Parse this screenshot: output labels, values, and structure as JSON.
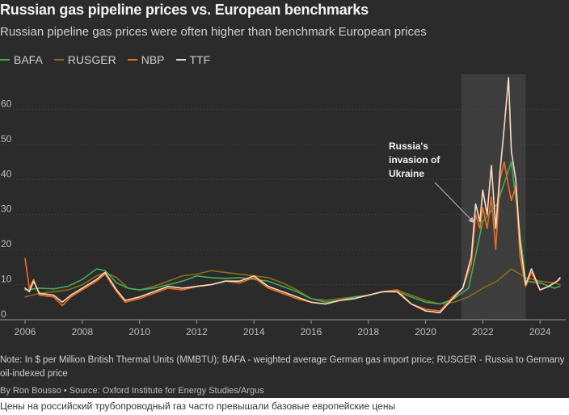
{
  "title": "Russian gas pipeline prices vs. European benchmarks",
  "subtitle": "Russian pipeline gas prices were often higher than benchmark European prices",
  "note": "Note: In $ per Million British Thermal Units (MMBTU); BAFA - weighted average German gas import price; RUSGER - Russia to Germany oil-indexed price",
  "credit": "By Ron Bousso • Source: Oxford Institute for Energy Studies/Argus",
  "caption": "Цены на российский трубопроводный газ часто превышали базовые европейские цены",
  "colors": {
    "background": "#2b2b2b",
    "BAFA": "#3fae5a",
    "RUSGER": "#8a6d1a",
    "NBP": "#f26b1d",
    "TTF": "#fbd9bf",
    "shade": "#3d3d3d"
  },
  "chart_data": {
    "type": "line",
    "xlim": [
      2006.0,
      2024.9
    ],
    "ylim": [
      0,
      70
    ],
    "yticks": [
      0,
      10,
      20,
      30,
      40,
      50,
      60
    ],
    "xticks": [
      2006,
      2008,
      2010,
      2012,
      2014,
      2016,
      2018,
      2020,
      2022,
      2024
    ],
    "ytick_labels": [
      "0",
      "10",
      "20",
      "30",
      "40",
      "50",
      "60"
    ],
    "xtick_labels": [
      "2006",
      "2008",
      "2010",
      "2012",
      "2014",
      "2016",
      "2018",
      "2020",
      "2022",
      "2024"
    ],
    "shaded_range": [
      2021.25,
      2023.5
    ],
    "annotation": {
      "lines": [
        "Russia's",
        "invasion of",
        "Ukraine"
      ],
      "x": 2022.0,
      "y": 27.5
    },
    "series": [
      {
        "name": "BAFA",
        "x": [
          2006.0,
          2006.5,
          2007.0,
          2007.5,
          2008.0,
          2008.5,
          2008.8,
          2009.2,
          2009.6,
          2010.0,
          2010.5,
          2011.0,
          2011.5,
          2012.0,
          2012.5,
          2013.0,
          2013.5,
          2014.0,
          2014.5,
          2015.0,
          2015.5,
          2016.0,
          2016.5,
          2017.0,
          2017.5,
          2018.0,
          2018.5,
          2019.0,
          2019.5,
          2020.0,
          2020.5,
          2021.0,
          2021.5,
          2022.0,
          2022.5,
          2023.0,
          2023.5,
          2024.0,
          2024.5,
          2024.7
        ],
        "values": [
          8.5,
          9.0,
          8.8,
          9.5,
          11.5,
          14.5,
          14.0,
          10.5,
          9.0,
          8.5,
          9.0,
          10.0,
          11.0,
          12.5,
          12.0,
          11.8,
          12.0,
          11.5,
          11.0,
          9.5,
          8.0,
          6.0,
          5.0,
          5.5,
          6.5,
          7.0,
          8.0,
          8.0,
          6.5,
          5.0,
          4.5,
          6.0,
          9.0,
          28.0,
          33.0,
          45.0,
          11.0,
          10.5,
          9.0,
          9.5
        ]
      },
      {
        "name": "RUSGER",
        "x": [
          2006.0,
          2006.5,
          2007.0,
          2007.5,
          2008.0,
          2008.5,
          2008.8,
          2009.2,
          2009.6,
          2010.0,
          2010.5,
          2011.0,
          2011.5,
          2012.0,
          2012.5,
          2013.0,
          2013.5,
          2014.0,
          2014.5,
          2015.0,
          2015.5,
          2016.0,
          2016.5,
          2017.0,
          2017.5,
          2018.0,
          2018.5,
          2019.0,
          2019.5,
          2020.0,
          2020.5,
          2021.0,
          2021.5,
          2022.0,
          2022.5,
          2023.0,
          2023.5,
          2024.0,
          2024.5,
          2024.7
        ],
        "values": [
          6.5,
          7.5,
          8.0,
          8.5,
          10.0,
          12.5,
          13.5,
          12.0,
          9.0,
          8.5,
          9.5,
          11.0,
          12.5,
          13.0,
          14.0,
          13.5,
          13.0,
          12.5,
          12.0,
          10.5,
          8.5,
          6.0,
          5.5,
          6.0,
          6.5,
          7.0,
          8.0,
          8.5,
          7.0,
          5.5,
          4.5,
          5.0,
          6.5,
          9.0,
          11.0,
          14.5,
          12.0,
          11.0,
          10.5,
          10.0
        ]
      },
      {
        "name": "NBP",
        "x": [
          2006.0,
          2006.15,
          2006.3,
          2006.5,
          2007.0,
          2007.3,
          2007.6,
          2008.0,
          2008.5,
          2008.8,
          2009.2,
          2009.5,
          2010.0,
          2010.5,
          2011.0,
          2011.5,
          2012.0,
          2012.5,
          2013.0,
          2013.5,
          2014.0,
          2014.5,
          2015.0,
          2015.5,
          2016.0,
          2016.5,
          2017.0,
          2017.5,
          2018.0,
          2018.5,
          2019.0,
          2019.5,
          2020.0,
          2020.5,
          2021.0,
          2021.3,
          2021.6,
          2021.75,
          2021.9,
          2022.0,
          2022.15,
          2022.3,
          2022.45,
          2022.6,
          2022.75,
          2022.9,
          2023.0,
          2023.15,
          2023.3,
          2023.5,
          2023.7,
          2024.0,
          2024.3,
          2024.6,
          2024.7
        ],
        "values": [
          17.5,
          9.0,
          11.5,
          7.0,
          6.5,
          4.0,
          6.5,
          8.5,
          11.0,
          13.0,
          8.0,
          5.0,
          6.0,
          7.5,
          9.0,
          8.5,
          9.5,
          10.0,
          11.0,
          10.5,
          12.0,
          9.0,
          7.5,
          6.0,
          5.0,
          4.5,
          5.5,
          6.0,
          7.0,
          8.0,
          8.5,
          4.5,
          3.0,
          2.5,
          7.0,
          9.0,
          16.0,
          30.0,
          26.0,
          32.0,
          26.0,
          35.0,
          20.0,
          40.0,
          45.0,
          38.0,
          34.0,
          38.0,
          18.0,
          9.5,
          13.5,
          8.5,
          9.5,
          11.0,
          11.5
        ]
      },
      {
        "name": "TTF",
        "x": [
          2006.0,
          2006.15,
          2006.3,
          2006.5,
          2007.0,
          2007.3,
          2007.6,
          2008.0,
          2008.5,
          2008.8,
          2009.2,
          2009.5,
          2010.0,
          2010.5,
          2011.0,
          2011.5,
          2012.0,
          2012.5,
          2013.0,
          2013.5,
          2014.0,
          2014.5,
          2015.0,
          2015.5,
          2016.0,
          2016.5,
          2017.0,
          2017.5,
          2018.0,
          2018.5,
          2019.0,
          2019.5,
          2020.0,
          2020.5,
          2021.0,
          2021.3,
          2021.6,
          2021.75,
          2021.9,
          2022.0,
          2022.15,
          2022.3,
          2022.45,
          2022.6,
          2022.75,
          2022.9,
          2023.0,
          2023.15,
          2023.3,
          2023.5,
          2023.7,
          2024.0,
          2024.3,
          2024.6,
          2024.7
        ],
        "values": [
          9.0,
          8.0,
          11.0,
          7.5,
          7.0,
          5.0,
          7.0,
          9.0,
          11.5,
          13.5,
          8.5,
          5.5,
          6.5,
          8.0,
          9.5,
          9.0,
          9.5,
          10.0,
          11.0,
          11.0,
          12.5,
          9.5,
          8.0,
          6.5,
          5.0,
          4.5,
          5.5,
          6.0,
          7.0,
          8.0,
          8.0,
          4.5,
          2.5,
          2.0,
          6.5,
          9.0,
          18.0,
          33.0,
          28.0,
          37.0,
          30.0,
          44.0,
          26.0,
          42.0,
          55.0,
          69.0,
          48.0,
          40.0,
          22.0,
          10.0,
          14.5,
          8.5,
          9.5,
          11.0,
          12.0
        ]
      }
    ]
  }
}
